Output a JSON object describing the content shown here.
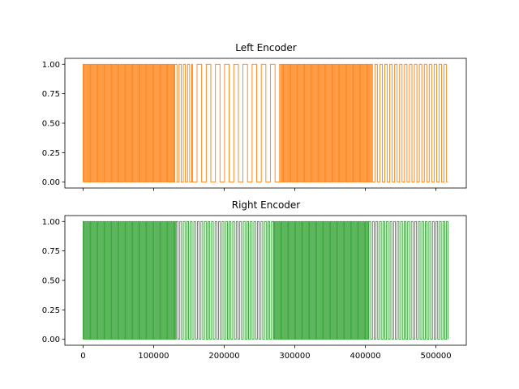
{
  "chart_data": [
    {
      "type": "line",
      "title": "Left Encoder",
      "xlabel": "",
      "ylabel": "",
      "xlim": [
        -25800,
        543000
      ],
      "ylim": [
        -0.05,
        1.05
      ],
      "y_ticks": [
        "0.00",
        "0.25",
        "0.50",
        "0.75",
        "1.00"
      ],
      "x_ticks": [],
      "x_tick_values": [
        0,
        100000,
        200000,
        300000,
        400000,
        500000
      ],
      "grid": false,
      "color": "#ff7f0e",
      "signal_range": [
        0,
        517000
      ],
      "segments": [
        {
          "x_start": 0,
          "x_end": 130000,
          "period": 2600
        },
        {
          "x_start": 130000,
          "x_end": 155000,
          "period": 6000
        },
        {
          "x_start": 155000,
          "x_end": 280000,
          "period": 13000
        },
        {
          "x_start": 280000,
          "x_end": 410000,
          "period": 2600
        },
        {
          "x_start": 410000,
          "x_end": 517000,
          "period": 7000
        }
      ]
    },
    {
      "type": "line",
      "title": "Right Encoder",
      "xlabel": "",
      "ylabel": "",
      "xlim": [
        -25800,
        543000
      ],
      "ylim": [
        -0.05,
        1.05
      ],
      "y_ticks": [
        "0.00",
        "0.25",
        "0.50",
        "0.75",
        "1.00"
      ],
      "x_ticks": [
        "0",
        "100000",
        "200000",
        "300000",
        "400000",
        "500000"
      ],
      "x_tick_values": [
        0,
        100000,
        200000,
        300000,
        400000,
        500000
      ],
      "grid": false,
      "color": "#2ca02c",
      "signal_range": [
        0,
        517000
      ],
      "segments": [
        {
          "x_start": 0,
          "x_end": 132000,
          "period": 2600
        },
        {
          "x_start": 132000,
          "x_end": 270000,
          "period": 5000
        },
        {
          "x_start": 270000,
          "x_end": 405000,
          "period": 2600
        },
        {
          "x_start": 405000,
          "x_end": 517000,
          "period": 5000
        }
      ]
    }
  ]
}
